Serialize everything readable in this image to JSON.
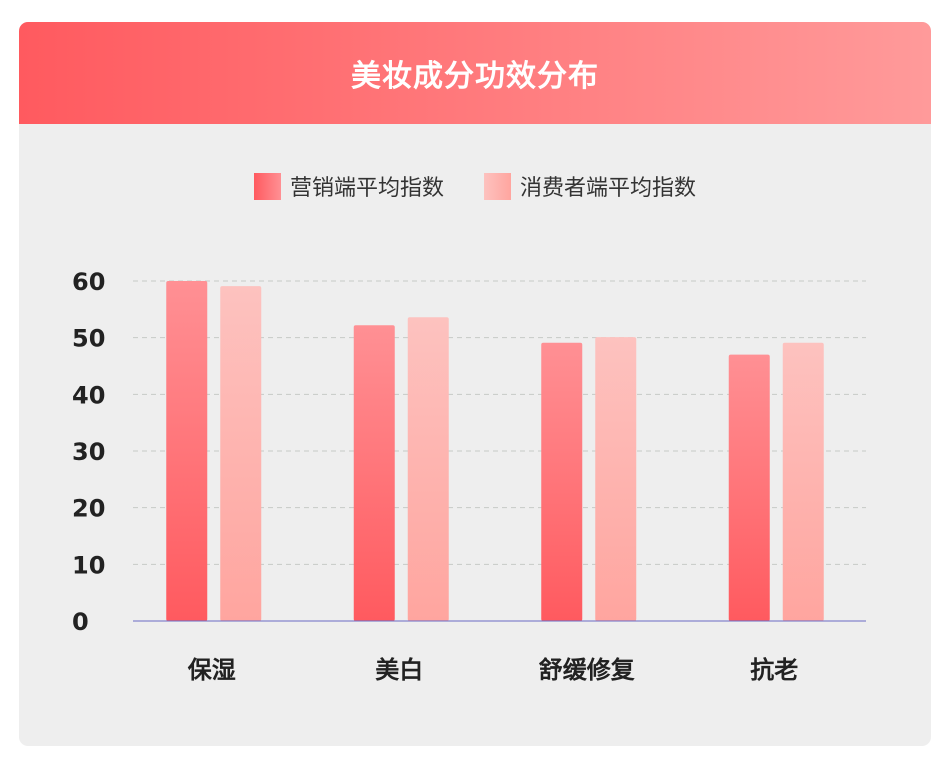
{
  "colors": {
    "header_start": "#ff5a5f",
    "header_end": "#ff9a9a",
    "card_bg": "#eeeeee",
    "marketing_top": "#ff9094",
    "marketing_bottom": "#ff5a5f",
    "consumer_top": "#fdc2bf",
    "consumer_bottom": "#ffa59f",
    "grid": "#c6c9c6",
    "axis": "#6b6bc4",
    "text": "#222222"
  },
  "chart_data": {
    "type": "bar",
    "title": "美妆成分功效分布",
    "categories": [
      "保湿",
      "美白",
      "舒缓修复",
      "抗老"
    ],
    "series": [
      {
        "name": "营销端平均指数",
        "values": [
          60,
          52.2,
          49.1,
          47
        ]
      },
      {
        "name": "消费者端平均指数",
        "values": [
          59.1,
          53.6,
          50.1,
          49.1
        ]
      }
    ],
    "ylim": [
      0,
      60
    ],
    "yticks": [
      0,
      10,
      20,
      30,
      40,
      50,
      60
    ],
    "grid": true,
    "legend_position": "top-center"
  }
}
